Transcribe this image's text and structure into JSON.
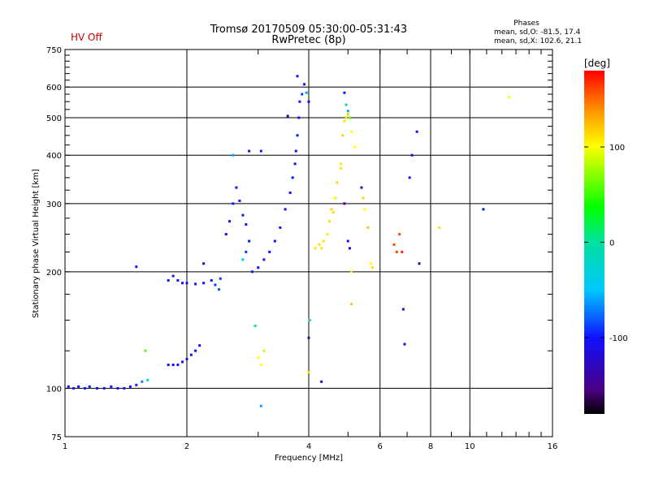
{
  "header": {
    "status": "HV Off",
    "title": "Tromsø 20170509 05:30:00-05:31:43",
    "subtitle": "RwPretec (8p)",
    "phases_heading": "Phases",
    "phases_o": "mean, sd,O: -81.5, 17.4",
    "phases_x": "mean, sd,X: 102.6, 21.1"
  },
  "colors": {
    "status": "#cc0000"
  },
  "chart_data": {
    "type": "scatter",
    "title": "Tromsø 20170509 05:30:00-05:31:43",
    "subtitle": "RwPretec (8p)",
    "xlabel": "Frequency [MHz]",
    "ylabel": "Stationary phase Virtual Height [km]",
    "xscale": "log",
    "yscale": "log",
    "xlim": [
      1,
      16
    ],
    "ylim": [
      75,
      750
    ],
    "xticks": [
      1,
      2,
      4,
      6,
      8,
      10,
      16
    ],
    "xtick_labels": [
      "1",
      "2",
      "4",
      "6",
      "8",
      "10",
      "16"
    ],
    "yticks": [
      75,
      100,
      200,
      300,
      400,
      500,
      600,
      750
    ],
    "ytick_labels": [
      "75",
      "100",
      "200",
      "300",
      "400",
      "500",
      "600",
      "750"
    ],
    "grid": true,
    "colorbar": {
      "label": "[deg]",
      "range": [
        -180,
        180
      ],
      "ticks": [
        100,
        0,
        -100
      ],
      "tick_labels": [
        "100",
        "0",
        "-100"
      ]
    },
    "series": [
      {
        "points": [
          [
            1.02,
            101,
            -100
          ],
          [
            1.05,
            100,
            -100
          ],
          [
            1.08,
            101,
            -100
          ],
          [
            1.12,
            100,
            -100
          ],
          [
            1.15,
            101,
            -100
          ],
          [
            1.2,
            100,
            -100
          ],
          [
            1.25,
            100,
            -100
          ],
          [
            1.3,
            101,
            -100
          ],
          [
            1.35,
            100,
            -100
          ],
          [
            1.4,
            100,
            -100
          ],
          [
            1.45,
            101,
            -100
          ],
          [
            1.5,
            102,
            -95
          ],
          [
            1.55,
            104,
            -70
          ],
          [
            1.6,
            105,
            -40
          ],
          [
            1.5,
            206,
            -100
          ],
          [
            1.58,
            125,
            60
          ],
          [
            1.8,
            115,
            -100
          ],
          [
            1.85,
            115,
            -100
          ],
          [
            1.9,
            115,
            -100
          ],
          [
            1.95,
            117,
            -100
          ],
          [
            2.0,
            119,
            -100
          ],
          [
            2.05,
            122,
            -100
          ],
          [
            2.1,
            125,
            -100
          ],
          [
            2.15,
            129,
            -100
          ],
          [
            1.8,
            190,
            -100
          ],
          [
            1.85,
            195,
            -100
          ],
          [
            1.9,
            190,
            -100
          ],
          [
            1.95,
            187,
            -100
          ],
          [
            2.0,
            187,
            -100
          ],
          [
            2.1,
            186,
            -100
          ],
          [
            2.2,
            187,
            -100
          ],
          [
            2.3,
            190,
            -100
          ],
          [
            2.35,
            185,
            -90
          ],
          [
            2.4,
            180,
            -80
          ],
          [
            2.42,
            192,
            -90
          ],
          [
            2.2,
            210,
            -120
          ],
          [
            2.5,
            250,
            -100
          ],
          [
            2.55,
            270,
            -100
          ],
          [
            2.6,
            300,
            -100
          ],
          [
            2.65,
            330,
            -100
          ],
          [
            2.7,
            305,
            -100
          ],
          [
            2.75,
            280,
            -100
          ],
          [
            2.8,
            265,
            -100
          ],
          [
            2.85,
            240,
            -100
          ],
          [
            2.75,
            215,
            -50
          ],
          [
            2.8,
            225,
            -90
          ],
          [
            2.6,
            400,
            -60
          ],
          [
            2.85,
            410,
            -110
          ],
          [
            3.05,
            410,
            -100
          ],
          [
            2.9,
            200,
            -100
          ],
          [
            3.0,
            205,
            -100
          ],
          [
            3.1,
            215,
            -100
          ],
          [
            3.2,
            225,
            -100
          ],
          [
            3.3,
            240,
            -100
          ],
          [
            3.4,
            260,
            -100
          ],
          [
            3.5,
            290,
            -100
          ],
          [
            3.6,
            320,
            -100
          ],
          [
            3.65,
            350,
            -100
          ],
          [
            3.7,
            380,
            -100
          ],
          [
            3.72,
            410,
            -100
          ],
          [
            3.75,
            450,
            -100
          ],
          [
            3.78,
            500,
            -100
          ],
          [
            3.8,
            550,
            -100
          ],
          [
            3.85,
            575,
            -90
          ],
          [
            3.9,
            610,
            -100
          ],
          [
            3.95,
            580,
            -60
          ],
          [
            4.0,
            550,
            -100
          ],
          [
            3.75,
            640,
            -110
          ],
          [
            3.55,
            505,
            -120
          ],
          [
            3.0,
            120,
            100
          ],
          [
            3.05,
            115,
            100
          ],
          [
            3.1,
            125,
            90
          ],
          [
            2.95,
            145,
            -10
          ],
          [
            3.05,
            90,
            -60
          ],
          [
            4.0,
            110,
            110
          ],
          [
            4.02,
            150,
            -30
          ],
          [
            4.0,
            135,
            -140
          ],
          [
            4.3,
            104,
            -120
          ],
          [
            4.15,
            230,
            110
          ],
          [
            4.25,
            235,
            110
          ],
          [
            4.3,
            230,
            110
          ],
          [
            4.35,
            240,
            110
          ],
          [
            4.45,
            250,
            105
          ],
          [
            4.5,
            270,
            110
          ],
          [
            4.55,
            290,
            115
          ],
          [
            4.6,
            285,
            110
          ],
          [
            4.65,
            310,
            105
          ],
          [
            4.7,
            340,
            115
          ],
          [
            4.8,
            380,
            110
          ],
          [
            4.85,
            450,
            115
          ],
          [
            4.9,
            490,
            110
          ],
          [
            4.95,
            500,
            115
          ],
          [
            5.0,
            510,
            120
          ],
          [
            4.9,
            580,
            -100
          ],
          [
            4.95,
            540,
            -20
          ],
          [
            5.0,
            520,
            -60
          ],
          [
            5.05,
            500,
            60
          ],
          [
            5.1,
            460,
            100
          ],
          [
            4.9,
            300,
            -150
          ],
          [
            5.0,
            240,
            -100
          ],
          [
            5.05,
            230,
            -120
          ],
          [
            5.1,
            200,
            110
          ],
          [
            5.1,
            165,
            120
          ],
          [
            4.8,
            370,
            110
          ],
          [
            5.2,
            420,
            100
          ],
          [
            5.4,
            330,
            -130
          ],
          [
            5.45,
            310,
            115
          ],
          [
            5.5,
            290,
            100
          ],
          [
            5.6,
            260,
            120
          ],
          [
            5.7,
            210,
            100
          ],
          [
            5.75,
            205,
            110
          ],
          [
            6.5,
            235,
            160
          ],
          [
            6.6,
            225,
            160
          ],
          [
            6.7,
            250,
            160
          ],
          [
            6.8,
            225,
            170
          ],
          [
            6.85,
            160,
            -120
          ],
          [
            6.9,
            130,
            -120
          ],
          [
            7.1,
            350,
            -110
          ],
          [
            7.2,
            400,
            -100
          ],
          [
            7.4,
            460,
            -110
          ],
          [
            7.5,
            210,
            -140
          ],
          [
            8.4,
            260,
            110
          ],
          [
            10.8,
            290,
            -100
          ],
          [
            12.5,
            565,
            100
          ]
        ]
      }
    ]
  }
}
